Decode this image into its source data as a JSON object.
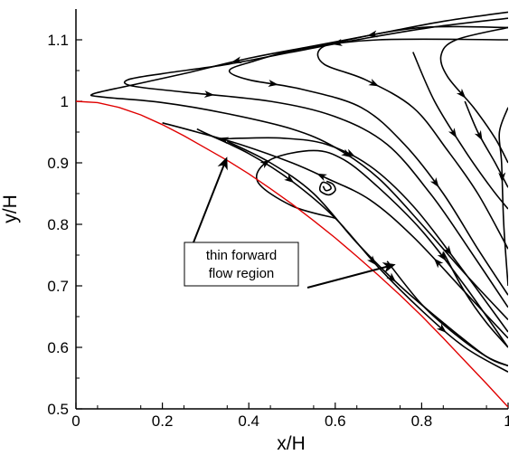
{
  "chart_data": {
    "type": "line",
    "title": "",
    "xlabel": "x/H",
    "ylabel": "y/H",
    "xlim": [
      0,
      1
    ],
    "ylim": [
      0.5,
      1.15
    ],
    "x_ticks": [
      0,
      0.2,
      0.4,
      0.6,
      0.8,
      1
    ],
    "y_ticks": [
      0.5,
      0.6,
      0.7,
      0.8,
      0.9,
      1,
      1.1
    ],
    "x_tick_labels": [
      "0",
      "0.2",
      "0.4",
      "0.6",
      "0.8",
      "1"
    ],
    "y_tick_labels": [
      "0.5",
      "0.6",
      "0.7",
      "0.8",
      "0.9",
      "1",
      "1.1"
    ],
    "grid": false,
    "colors": {
      "wall": "#e00000",
      "streamline": "#000000"
    },
    "wall": {
      "x": [
        0,
        0.05,
        0.1,
        0.15,
        0.2,
        0.25,
        0.3,
        0.35,
        0.4,
        0.45,
        0.5,
        0.55,
        0.6,
        0.65,
        0.7,
        0.75,
        0.8,
        0.85,
        0.9,
        0.95,
        1.0
      ],
      "y": [
        1.0,
        0.998,
        0.99,
        0.978,
        0.962,
        0.944,
        0.924,
        0.904,
        0.882,
        0.858,
        0.833,
        0.806,
        0.778,
        0.748,
        0.717,
        0.685,
        0.651,
        0.615,
        0.578,
        0.541,
        0.503
      ]
    },
    "streamlines": [
      {
        "points": [
          [
            1,
            1.145
          ],
          [
            0.85,
            1.13
          ],
          [
            0.7,
            1.11
          ],
          [
            0.55,
            1.09
          ],
          [
            0.4,
            1.07
          ],
          [
            0.25,
            1.045
          ],
          [
            0.12,
            1.025
          ],
          [
            0.04,
            1.012
          ],
          [
            0.06,
            1.007
          ],
          [
            0.2,
            0.998
          ],
          [
            0.35,
            0.98
          ],
          [
            0.5,
            0.955
          ],
          [
            0.6,
            0.925
          ],
          [
            0.7,
            0.875
          ],
          [
            0.8,
            0.8
          ],
          [
            0.9,
            0.72
          ],
          [
            1,
            0.645
          ]
        ],
        "arrows": [
          0.15,
          0.3,
          0.75
        ]
      },
      {
        "points": [
          [
            1,
            1.135
          ],
          [
            0.82,
            1.12
          ],
          [
            0.65,
            1.1
          ],
          [
            0.5,
            1.08
          ],
          [
            0.35,
            1.06
          ],
          [
            0.2,
            1.045
          ],
          [
            0.12,
            1.035
          ],
          [
            0.13,
            1.025
          ],
          [
            0.25,
            1.015
          ],
          [
            0.45,
            1.0
          ],
          [
            0.6,
            0.975
          ],
          [
            0.72,
            0.93
          ],
          [
            0.82,
            0.85
          ],
          [
            0.9,
            0.77
          ],
          [
            1,
            0.665
          ]
        ],
        "arrows": [
          0.2,
          0.55
        ]
      },
      {
        "points": [
          [
            1,
            1.1
          ],
          [
            0.7,
            1.1
          ],
          [
            0.52,
            1.085
          ],
          [
            0.41,
            1.065
          ],
          [
            0.355,
            1.05
          ],
          [
            0.4,
            1.035
          ],
          [
            0.52,
            1.02
          ],
          [
            0.66,
            0.99
          ],
          [
            0.76,
            0.93
          ],
          [
            0.85,
            0.85
          ],
          [
            0.93,
            0.76
          ],
          [
            1,
            0.685
          ]
        ],
        "arrows": [
          0.5,
          0.8
        ]
      },
      {
        "points": [
          [
            1,
            1.12
          ],
          [
            0.8,
            1.12
          ],
          [
            0.63,
            1.1
          ],
          [
            0.565,
            1.085
          ],
          [
            0.575,
            1.06
          ],
          [
            0.67,
            1.035
          ],
          [
            0.78,
            0.99
          ],
          [
            0.86,
            0.92
          ],
          [
            0.93,
            0.85
          ],
          [
            1,
            0.76
          ]
        ],
        "arrows": [
          0.55
        ]
      },
      {
        "points": [
          [
            1,
            1.12
          ],
          [
            0.88,
            1.1
          ],
          [
            0.845,
            1.075
          ],
          [
            0.86,
            1.04
          ],
          [
            0.92,
            0.99
          ],
          [
            0.97,
            0.94
          ],
          [
            1,
            0.9
          ]
        ],
        "arrows": [
          0.6
        ]
      },
      {
        "points": [
          [
            0.78,
            1.08
          ],
          [
            0.83,
            1.0
          ],
          [
            0.9,
            0.92
          ],
          [
            0.96,
            0.86
          ],
          [
            1,
            0.825
          ]
        ],
        "arrows": [
          0.5
        ]
      },
      {
        "points": [
          [
            0.9,
            1.0
          ],
          [
            0.93,
            0.95
          ],
          [
            0.97,
            0.9
          ],
          [
            1,
            0.86
          ]
        ],
        "arrows": [
          0.4
        ]
      },
      {
        "points": [
          [
            1,
            0.99
          ],
          [
            0.98,
            0.95
          ],
          [
            0.985,
            0.9
          ],
          [
            0.99,
            0.8
          ],
          [
            1,
            0.7
          ]
        ],
        "arrows": [
          0.4
        ]
      },
      {
        "points": [
          [
            0.6,
            0.81
          ],
          [
            0.5,
            0.83
          ],
          [
            0.42,
            0.87
          ],
          [
            0.45,
            0.905
          ],
          [
            0.55,
            0.92
          ],
          [
            0.62,
            0.905
          ],
          [
            0.7,
            0.86
          ],
          [
            0.8,
            0.79
          ],
          [
            0.9,
            0.7
          ],
          [
            1,
            0.6
          ]
        ],
        "arrows": [
          0.25,
          0.75
        ]
      },
      {
        "points": [
          [
            1,
            0.615
          ],
          [
            0.9,
            0.69
          ],
          [
            0.78,
            0.78
          ],
          [
            0.68,
            0.84
          ],
          [
            0.58,
            0.875
          ],
          [
            0.5,
            0.9
          ],
          [
            0.38,
            0.93
          ],
          [
            0.28,
            0.95
          ],
          [
            0.2,
            0.965
          ]
        ],
        "arrows": [
          0.25,
          0.6,
          0.85
        ]
      },
      {
        "points": [
          [
            0.28,
            0.955
          ],
          [
            0.33,
            0.94
          ],
          [
            0.38,
            0.94
          ],
          [
            0.48,
            0.94
          ],
          [
            0.58,
            0.93
          ],
          [
            0.68,
            0.895
          ],
          [
            0.78,
            0.83
          ],
          [
            0.88,
            0.74
          ],
          [
            1,
            0.625
          ]
        ],
        "arrows": [
          0.4,
          0.75
        ]
      },
      {
        "points": [
          [
            0.3,
            0.948
          ],
          [
            0.4,
            0.915
          ],
          [
            0.5,
            0.87
          ],
          [
            0.6,
            0.81
          ],
          [
            0.7,
            0.73
          ],
          [
            0.8,
            0.66
          ],
          [
            0.9,
            0.6
          ],
          [
            1,
            0.56
          ]
        ],
        "arrows": [
          0.25,
          0.55,
          0.8
        ]
      },
      {
        "points": [
          [
            0.35,
            0.935
          ],
          [
            0.45,
            0.9
          ],
          [
            0.55,
            0.85
          ],
          [
            0.65,
            0.77
          ],
          [
            0.75,
            0.7
          ],
          [
            0.85,
            0.64
          ],
          [
            0.95,
            0.585
          ],
          [
            1,
            0.57
          ]
        ],
        "arrows": [
          0.6
        ]
      },
      {
        "points": [
          [
            0.72,
            0.74
          ],
          [
            0.8,
            0.67
          ],
          [
            0.88,
            0.62
          ],
          [
            0.95,
            0.585
          ],
          [
            1,
            0.57
          ]
        ],
        "arrows": []
      },
      {
        "points": [
          [
            0.85,
            0.755
          ],
          [
            0.9,
            0.69
          ],
          [
            0.95,
            0.64
          ],
          [
            1,
            0.6
          ]
        ],
        "arrows": []
      },
      {
        "points": [
          [
            0.58,
            0.87
          ],
          [
            0.595,
            0.865
          ],
          [
            0.6,
            0.855
          ],
          [
            0.585,
            0.848
          ],
          [
            0.565,
            0.855
          ],
          [
            0.57,
            0.868
          ],
          [
            0.585,
            0.865
          ],
          [
            0.59,
            0.858
          ],
          [
            0.578,
            0.855
          ],
          [
            0.572,
            0.862
          ]
        ],
        "arrows": []
      }
    ],
    "annotations": [
      {
        "text": "thin forward flow region",
        "lines": [
          "thin forward",
          "flow region"
        ],
        "targets": [
          [
            0.35,
            0.91
          ],
          [
            0.74,
            0.735
          ]
        ]
      }
    ]
  }
}
